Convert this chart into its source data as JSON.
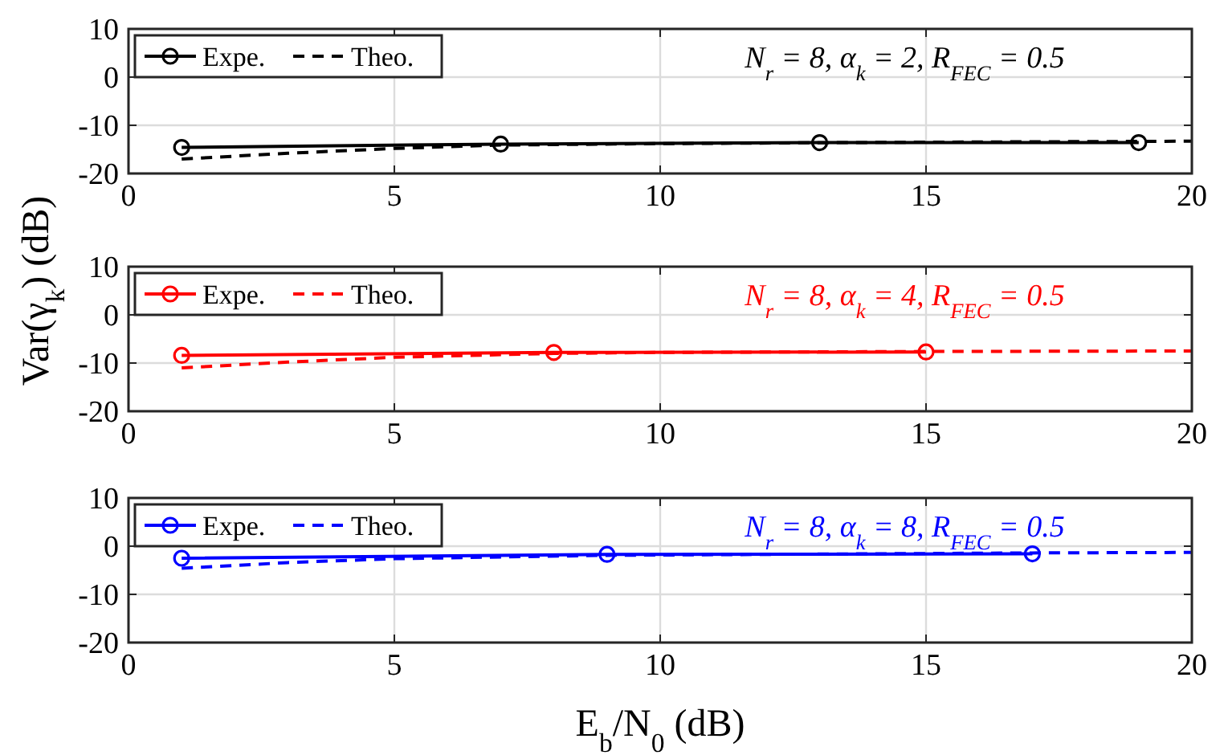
{
  "chart_data": [
    {
      "type": "line",
      "xlim": [
        0,
        20
      ],
      "xticks": [
        0,
        5,
        10,
        15,
        20
      ],
      "ylim": [
        -20,
        10
      ],
      "yticks": [
        -20,
        -10,
        0,
        10
      ],
      "grid": true,
      "legend": "top left",
      "annotations": [
        "N$_{r}$ = 8, α$_{k}$ = 2, R$_{FEC}$ = 0.5"
      ],
      "series": [
        {
          "name": "Expe.",
          "color": "#000000",
          "marker": "circle",
          "line_style": "solid",
          "x": [
            1,
            7,
            13,
            19
          ],
          "values": [
            -14.6,
            -13.9,
            -13.6,
            -13.6
          ]
        },
        {
          "name": "Theo.",
          "color": "#000000",
          "marker": "none",
          "line_style": "dashed",
          "x": [
            1,
            3,
            5,
            7,
            10,
            15,
            20
          ],
          "values": [
            -17,
            -15.8,
            -14.8,
            -14.1,
            -13.8,
            -13.5,
            -13.3
          ]
        }
      ]
    },
    {
      "type": "line",
      "xlim": [
        0,
        20
      ],
      "xticks": [
        0,
        5,
        10,
        15,
        20
      ],
      "ylim": [
        -20,
        10
      ],
      "yticks": [
        -20,
        -10,
        0,
        10
      ],
      "grid": true,
      "legend": "top left",
      "ylabel": "Var(γ$_{k}$) (dB)",
      "annotations": [
        "N$_{r}$ = 8, α$_{k}$ = 4, R$_{FEC}$ = 0.5"
      ],
      "series": [
        {
          "name": "Expe.",
          "color": "#ff0000",
          "marker": "circle",
          "line_style": "solid",
          "x": [
            1,
            8,
            15
          ],
          "values": [
            -8.4,
            -7.8,
            -7.7
          ]
        },
        {
          "name": "Theo.",
          "color": "#ff0000",
          "marker": "none",
          "line_style": "dashed",
          "x": [
            1,
            3,
            5,
            8,
            10,
            15,
            20
          ],
          "values": [
            -11,
            -9.8,
            -8.8,
            -8,
            -7.8,
            -7.6,
            -7.5
          ]
        }
      ]
    },
    {
      "type": "line",
      "xlim": [
        0,
        20
      ],
      "xticks": [
        0,
        5,
        10,
        15,
        20
      ],
      "ylim": [
        -20,
        10
      ],
      "yticks": [
        -20,
        -10,
        0,
        10
      ],
      "grid": true,
      "legend": "top left",
      "xlabel": "E$_{b}$/N$_{0}$ (dB)",
      "annotations": [
        "N$_{r}$ = 8, α$_{k}$ = 8, R$_{FEC}$ = 0.5"
      ],
      "series": [
        {
          "name": "Expe.",
          "color": "#0000ff",
          "marker": "circle",
          "line_style": "solid",
          "x": [
            1,
            9,
            17
          ],
          "values": [
            -2.5,
            -1.7,
            -1.6
          ]
        },
        {
          "name": "Theo.",
          "color": "#0000ff",
          "marker": "none",
          "line_style": "dashed",
          "x": [
            1,
            3,
            5,
            9,
            12,
            17,
            20
          ],
          "values": [
            -4.6,
            -3.4,
            -2.6,
            -1.9,
            -1.7,
            -1.4,
            -1.3
          ]
        }
      ]
    }
  ]
}
